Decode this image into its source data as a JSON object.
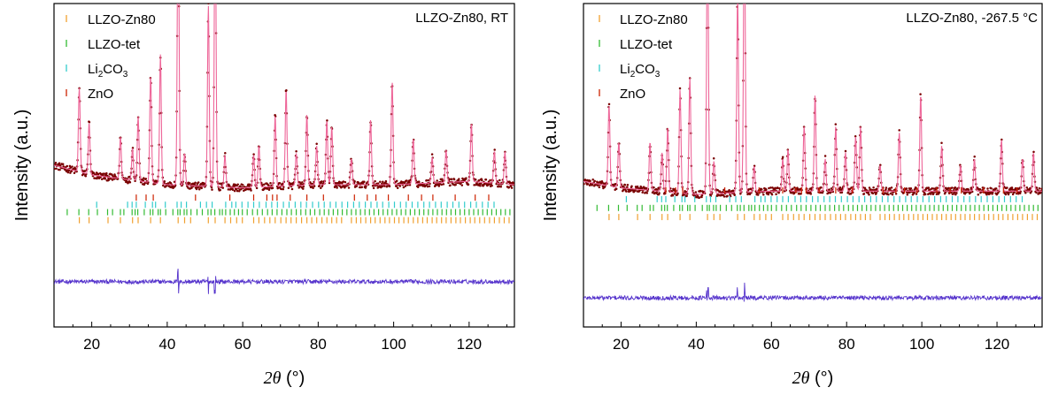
{
  "chart_data": [
    {
      "type": "line",
      "title": "LLZO-Zn80, RT",
      "xlabel": "2θ (°)",
      "ylabel": "Intensity (a.u.)",
      "xlim": [
        10,
        132
      ],
      "ylim": [
        0,
        1
      ],
      "grid": false,
      "legend_placement": "top-left",
      "xticks": [
        20,
        40,
        60,
        80,
        100,
        120
      ],
      "series": [
        {
          "name": "LLZO-Zn80",
          "kind": "reflection-ticks",
          "color": "#f0a030",
          "row": 0.67,
          "x": [
            16.7,
            19.3,
            24.3,
            27.6,
            30.8,
            32.3,
            35.6,
            38.2,
            42.9,
            44.6,
            46.2,
            50.9,
            52.7,
            55.3,
            56.8,
            58.4,
            59.9,
            62.9,
            64.3,
            65.8,
            67.2,
            68.6,
            70.1,
            71.5,
            72.8,
            74.2,
            75.6,
            77.0,
            78.3,
            79.6,
            81.0,
            82.3,
            83.6,
            84.9,
            86.2,
            88.8,
            90.1,
            91.3,
            92.6,
            93.9,
            95.1,
            96.4,
            97.7,
            98.9,
            100.2,
            101.4,
            102.7,
            103.9,
            105.2,
            106.4,
            107.7,
            108.9,
            110.2,
            111.4,
            112.7,
            113.9,
            115.2,
            116.5,
            117.7,
            119.0,
            120.3,
            121.5,
            122.8,
            124.1,
            125.4,
            126.7,
            128.0,
            129.3,
            130.6
          ]
        },
        {
          "name": "LLZO-tet",
          "kind": "reflection-ticks",
          "color": "#33bb33",
          "row": 0.645,
          "x": [
            13.5,
            16.6,
            19.2,
            21.5,
            24.2,
            25.5,
            27.6,
            28.5,
            30.7,
            31.5,
            32.2,
            33.9,
            35.5,
            36.2,
            37.6,
            38.2,
            39.6,
            41.5,
            42.8,
            43.4,
            44.5,
            45.2,
            46.3,
            47.9,
            49.3,
            50.8,
            51.6,
            52.6,
            53.9,
            54.6,
            55.5,
            56.7,
            57.8,
            58.9,
            59.9,
            61.2,
            62.6,
            63.9,
            65.2,
            66.6,
            67.8,
            69.1,
            70.4,
            71.7,
            72.9,
            74.2,
            75.4,
            76.7,
            77.9,
            79.1,
            80.4,
            81.6,
            82.8,
            84.0,
            85.2,
            86.4,
            87.6,
            88.8,
            90.0,
            91.2,
            92.4,
            93.6,
            94.8,
            96.0,
            97.2,
            98.4,
            99.6,
            100.8,
            102.0,
            103.2,
            104.4,
            105.6,
            106.8,
            108.0,
            109.2,
            110.4,
            111.6,
            112.8,
            114.0,
            115.2,
            116.4,
            117.6,
            118.8,
            120.0,
            121.2,
            122.4,
            123.6,
            124.8,
            126.0,
            127.2,
            128.4,
            129.6,
            130.8
          ]
        },
        {
          "name": "Li₂CO₃",
          "kind": "reflection-ticks",
          "color": "#33cccc",
          "row": 0.622,
          "x": [
            21.3,
            29.5,
            30.7,
            31.8,
            34.2,
            36.1,
            36.9,
            39.5,
            42.6,
            43.7,
            45.1,
            48.8,
            50.4,
            51.9,
            55.5,
            57.1,
            58.2,
            59.8,
            61.4,
            62.9,
            64.4,
            66.2,
            67.7,
            69.2,
            70.8,
            72.3,
            73.9,
            75.4,
            76.9,
            78.5,
            80.1,
            81.6,
            83.2,
            84.7,
            86.3,
            87.8,
            89.4,
            90.9,
            92.5,
            94.0,
            95.6,
            97.1,
            98.7,
            100.2,
            101.8,
            103.3,
            104.9,
            106.4,
            108.0,
            109.5,
            111.1,
            112.6,
            114.2,
            115.7,
            117.3,
            118.8,
            120.4,
            121.9,
            123.5,
            125.0,
            126.6
          ]
        },
        {
          "name": "ZnO",
          "kind": "reflection-ticks",
          "color": "#cc2200",
          "row": 0.6,
          "x": [
            31.8,
            34.4,
            36.3,
            47.5,
            56.6,
            62.9,
            66.4,
            67.9,
            69.1,
            72.6,
            77.0,
            81.4,
            89.6,
            93.0,
            95.3,
            98.6,
            103.9,
            107.4,
            110.4,
            116.3,
            121.6,
            125.2
          ]
        },
        {
          "name": "",
          "kind": "observed-points",
          "color": "#7a0000",
          "style": "dots"
        },
        {
          "name": "",
          "kind": "calculated",
          "color": "#ee6699",
          "style": "line"
        },
        {
          "name": "",
          "kind": "difference",
          "color": "#5533cc",
          "style": "line"
        }
      ],
      "peaks": {
        "x": [
          16.7,
          19.3,
          27.6,
          30.8,
          32.3,
          35.6,
          38.2,
          42.9,
          44.6,
          50.9,
          52.7,
          55.3,
          62.9,
          64.3,
          68.6,
          71.5,
          74.2,
          77.0,
          79.6,
          82.3,
          83.6,
          88.8,
          93.9,
          99.6,
          105.2,
          110.2,
          113.9,
          120.6,
          126.7,
          129.5
        ],
        "height": [
          0.26,
          0.16,
          0.13,
          0.1,
          0.2,
          0.33,
          0.4,
          0.9,
          0.1,
          0.56,
          0.93,
          0.1,
          0.1,
          0.13,
          0.22,
          0.3,
          0.1,
          0.22,
          0.12,
          0.2,
          0.18,
          0.08,
          0.2,
          0.32,
          0.14,
          0.08,
          0.1,
          0.18,
          0.1,
          0.1
        ]
      },
      "background": [
        [
          10,
          0.5
        ],
        [
          20,
          0.47
        ],
        [
          40,
          0.44
        ],
        [
          60,
          0.43
        ],
        [
          80,
          0.44
        ],
        [
          100,
          0.44
        ],
        [
          120,
          0.45
        ],
        [
          132,
          0.44
        ]
      ],
      "difference_baseline": 0.14
    },
    {
      "type": "line",
      "title": "LLZO-Zn80, -267.5 °C",
      "xlabel": "2θ (°)",
      "ylabel": "Intensity (a.u.)",
      "xlim": [
        10,
        132
      ],
      "ylim": [
        0,
        1
      ],
      "grid": false,
      "legend_placement": "top-left",
      "xticks": [
        20,
        40,
        60,
        80,
        100,
        120
      ],
      "series": [
        {
          "name": "LLZO-Zn80",
          "kind": "reflection-ticks",
          "color": "#f0a030",
          "row": 0.66,
          "x": [
            16.8,
            19.4,
            24.4,
            27.7,
            30.9,
            32.4,
            35.7,
            38.3,
            43.0,
            44.7,
            46.3,
            51.0,
            52.8,
            55.4,
            56.9,
            58.5,
            60.0,
            63.0,
            64.4,
            65.9,
            67.3,
            68.7,
            70.2,
            71.6,
            72.9,
            74.3,
            75.7,
            77.1,
            78.4,
            79.7,
            81.1,
            82.4,
            83.7,
            85.0,
            86.3,
            88.9,
            90.2,
            91.4,
            92.7,
            94.0,
            95.2,
            96.5,
            97.8,
            99.0,
            100.3,
            101.5,
            102.8,
            104.0,
            105.3,
            106.5,
            107.8,
            109.0,
            110.3,
            111.5,
            112.8,
            114.0,
            115.3,
            116.6,
            117.8,
            119.1,
            120.4,
            121.6,
            122.9,
            124.2,
            125.5,
            126.8,
            128.1,
            129.4,
            130.7
          ]
        },
        {
          "name": "LLZO-tet",
          "kind": "reflection-ticks",
          "color": "#33bb33",
          "row": 0.632,
          "x": [
            13.6,
            16.7,
            19.3,
            21.6,
            24.3,
            25.6,
            27.7,
            28.6,
            30.8,
            31.6,
            32.3,
            34.0,
            35.6,
            36.3,
            37.7,
            38.3,
            39.7,
            41.6,
            42.9,
            43.5,
            44.6,
            45.3,
            46.4,
            48.0,
            49.4,
            50.9,
            51.7,
            52.7,
            54.0,
            54.7,
            55.6,
            56.8,
            57.9,
            59.0,
            60.0,
            61.3,
            62.7,
            64.0,
            65.3,
            66.7,
            67.9,
            69.2,
            70.5,
            71.8,
            73.0,
            74.3,
            75.5,
            76.8,
            78.0,
            79.2,
            80.5,
            81.7,
            82.9,
            84.1,
            85.3,
            86.5,
            87.7,
            88.9,
            90.1,
            91.3,
            92.5,
            93.7,
            94.9,
            96.1,
            97.3,
            98.5,
            99.7,
            100.9,
            102.1,
            103.3,
            104.5,
            105.7,
            106.9,
            108.1,
            109.3,
            110.5,
            111.7,
            112.9,
            114.1,
            115.3,
            116.5,
            117.7,
            118.9,
            120.1,
            121.3,
            122.5,
            123.7,
            124.9,
            126.1,
            127.3,
            128.5,
            129.7,
            130.9
          ]
        },
        {
          "name": "Li₂CO₃",
          "kind": "reflection-ticks",
          "color": "#33cccc",
          "row": 0.605,
          "x": [
            21.4,
            29.6,
            30.8,
            31.9,
            34.3,
            36.2,
            37.0,
            39.6,
            42.7,
            43.8,
            45.2,
            48.9,
            50.5,
            52.0,
            55.6,
            57.2,
            58.3,
            59.9,
            61.5,
            63.0,
            64.5,
            66.3,
            67.8,
            69.3,
            70.9,
            72.4,
            74.0,
            75.5,
            77.0,
            78.6,
            80.2,
            81.7,
            83.3,
            84.8,
            86.4,
            87.9,
            89.5,
            91.0,
            92.6,
            94.1,
            95.7,
            97.2,
            98.8,
            100.3,
            101.9,
            103.4,
            105.0,
            106.5,
            108.1,
            109.6,
            111.2,
            112.7,
            114.3,
            115.8,
            117.4,
            118.9,
            120.5,
            122.0,
            123.6,
            125.1,
            126.7
          ]
        },
        {
          "name": "ZnO",
          "kind": "reflection-ticks",
          "color": "#cc2200",
          "row": 0.578,
          "x": [
            31.9,
            34.5,
            36.4,
            47.6,
            56.7,
            63.0,
            66.5,
            68.0,
            69.2,
            72.7,
            77.1,
            81.5,
            89.7,
            93.1,
            95.4,
            98.7,
            104.0,
            107.5,
            110.5,
            116.4,
            121.7,
            125.3
          ]
        },
        {
          "name": "",
          "kind": "observed-points",
          "color": "#7a0000",
          "style": "dots"
        },
        {
          "name": "",
          "kind": "calculated",
          "color": "#ee6699",
          "style": "line"
        },
        {
          "name": "",
          "kind": "difference",
          "color": "#5533cc",
          "style": "line"
        }
      ],
      "peaks": {
        "x": [
          16.8,
          19.4,
          27.7,
          30.9,
          32.4,
          35.7,
          38.3,
          43.0,
          44.7,
          51.0,
          52.8,
          55.4,
          63.0,
          64.4,
          68.7,
          71.6,
          74.3,
          77.1,
          79.7,
          82.4,
          83.7,
          88.9,
          94.0,
          99.7,
          105.3,
          110.3,
          114.0,
          121.2,
          126.8,
          129.7
        ],
        "height": [
          0.25,
          0.14,
          0.15,
          0.12,
          0.2,
          0.32,
          0.36,
          0.9,
          0.1,
          0.6,
          0.92,
          0.08,
          0.1,
          0.13,
          0.2,
          0.3,
          0.1,
          0.2,
          0.12,
          0.17,
          0.2,
          0.08,
          0.18,
          0.3,
          0.14,
          0.08,
          0.1,
          0.16,
          0.1,
          0.12
        ]
      },
      "background": [
        [
          10,
          0.45
        ],
        [
          20,
          0.43
        ],
        [
          40,
          0.41
        ],
        [
          60,
          0.42
        ],
        [
          80,
          0.42
        ],
        [
          100,
          0.42
        ],
        [
          120,
          0.42
        ],
        [
          132,
          0.42
        ]
      ],
      "difference_baseline": 0.09
    }
  ],
  "legend": {
    "llzo_zn80": "LLZO-Zn80",
    "llzo_tet": "LLZO-tet",
    "li2co3_base": "Li",
    "li2co3_sub1": "2",
    "li2co3_mid": "CO",
    "li2co3_sub2": "3",
    "zno": "ZnO"
  },
  "axes": {
    "ylabel": "Intensity (a.u.)",
    "xlabel_symbol": "2θ",
    "xlabel_unit": " (°)"
  }
}
